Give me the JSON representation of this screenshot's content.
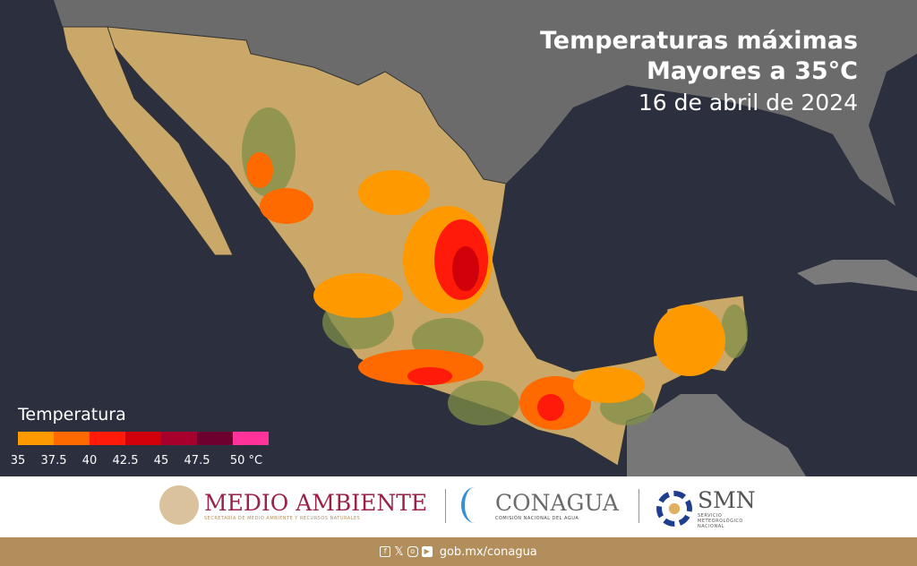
{
  "title": {
    "line1": "Temperaturas máximas",
    "line2": "Mayores a 35°C",
    "date": "16 de abril de 2024"
  },
  "legend": {
    "title": "Temperatura",
    "colors": [
      "#ff9900",
      "#ff6a00",
      "#ff1a0a",
      "#d0000a",
      "#a8002c",
      "#6e0030",
      "#ff3399"
    ],
    "ticks": [
      "35",
      "37.5",
      "40",
      "42.5",
      "45",
      "47.5",
      "50 °C"
    ]
  },
  "footer": {
    "medio_ambiente": {
      "name": "MEDIO AMBIENTE",
      "subtitle": "SECRETARÍA DE MEDIO AMBIENTE Y RECURSOS NATURALES"
    },
    "conagua": {
      "name": "CONAGUA",
      "subtitle": "COMISIÓN NACIONAL DEL AGUA"
    },
    "smn": {
      "name": "SMN",
      "subtitle": "SERVICIO METEOROLÓGICO NACIONAL"
    },
    "social_icons": [
      "facebook-icon",
      "x-icon",
      "instagram-icon",
      "youtube-icon"
    ],
    "url": "gob.mx/conagua"
  }
}
